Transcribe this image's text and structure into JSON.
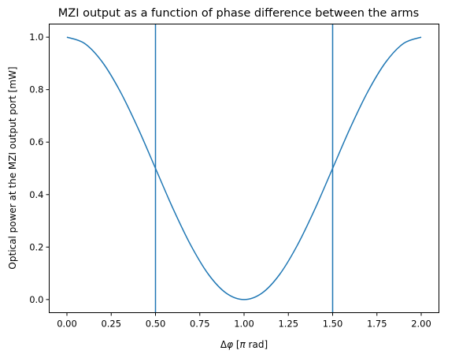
{
  "chart_data": {
    "type": "line",
    "title": "MZI output as a function of phase difference between the arms",
    "xlabel_prefix": "Δ",
    "xlabel_symbol": "φ",
    "xlabel_pre_unit": " [",
    "xlabel_unit_symbol": "π",
    "xlabel_suffix": " rad]",
    "ylabel": "Optical power at the MZI output port [mW]",
    "xlim": [
      -0.1,
      2.1
    ],
    "ylim": [
      -0.05,
      1.05
    ],
    "xticks": [
      0.0,
      0.25,
      0.5,
      0.75,
      1.0,
      1.25,
      1.5,
      1.75,
      2.0
    ],
    "xtick_labels": [
      "0.00",
      "0.25",
      "0.50",
      "0.75",
      "1.00",
      "1.25",
      "1.50",
      "1.75",
      "2.00"
    ],
    "yticks": [
      0.0,
      0.2,
      0.4,
      0.6,
      0.8,
      1.0
    ],
    "ytick_labels": [
      "0.0",
      "0.2",
      "0.4",
      "0.6",
      "0.8",
      "1.0"
    ],
    "grid": false,
    "line_color": "#1f77b4",
    "series": [
      {
        "x": [
          0.0,
          0.1,
          0.2,
          0.3,
          0.4,
          0.5,
          0.6,
          0.7,
          0.8,
          0.9,
          1.0,
          1.1,
          1.2,
          1.3,
          1.4,
          1.5,
          1.6,
          1.7,
          1.8,
          1.9,
          2.0
        ],
        "values": [
          1.0,
          0.976,
          0.905,
          0.794,
          0.655,
          0.5,
          0.345,
          0.206,
          0.095,
          0.024,
          0.0,
          0.024,
          0.095,
          0.206,
          0.345,
          0.5,
          0.655,
          0.794,
          0.905,
          0.976,
          1.0
        ]
      }
    ],
    "vertical_lines": [
      0.5,
      1.5
    ]
  }
}
